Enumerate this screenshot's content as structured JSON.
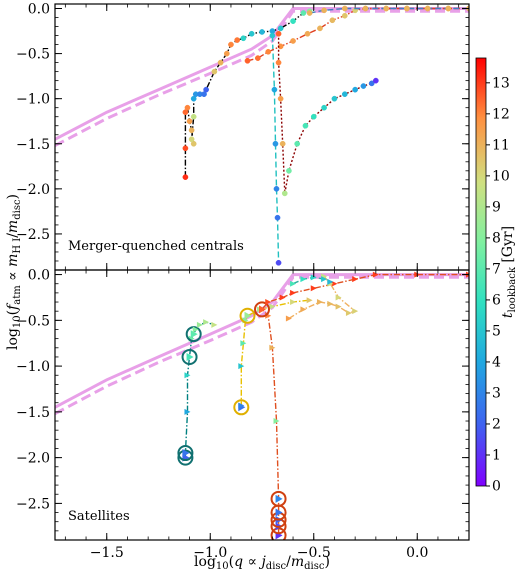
{
  "chart_data": [
    {
      "type": "line",
      "panel_label": "Merger-quenched centrals",
      "xlabel": "",
      "ylabel": "log10(f_atm ∝ m_HI/m_disc)",
      "xlim": [
        -1.75,
        0.25
      ],
      "ylim": [
        -2.9,
        0.05
      ],
      "x_ticks": [
        -1.5,
        -1.0,
        -0.5,
        0.0
      ],
      "x_tick_labels": [
        "",
        "",
        "",
        ""
      ],
      "y_ticks": [
        0.0,
        -0.5,
        -1.0,
        -1.5,
        -2.0,
        -2.5
      ],
      "y_tick_labels": [
        "0.0",
        "−0.5",
        "−1.0",
        "−1.5",
        "−2.0",
        "−2.5"
      ],
      "reference_curves": [
        {
          "style": "solid",
          "color": "#e8a0e8",
          "x": [
            -1.75,
            -1.5,
            -1.25,
            -1.0,
            -0.8,
            -0.7,
            -0.65,
            -0.6,
            0.25
          ],
          "y": [
            -1.45,
            -1.15,
            -0.9,
            -0.65,
            -0.45,
            -0.3,
            -0.15,
            0.0,
            0.0
          ]
        },
        {
          "style": "dashed",
          "color": "#e8a0e8",
          "x": [
            -1.75,
            -1.5,
            -1.25,
            -1.0,
            -0.8,
            -0.7,
            -0.65,
            -0.6,
            0.25
          ],
          "y": [
            -1.52,
            -1.22,
            -0.96,
            -0.72,
            -0.52,
            -0.36,
            -0.2,
            -0.03,
            -0.03
          ]
        }
      ],
      "series": [
        {
          "line_color": "#000000",
          "line_style": "dashdot",
          "points": [
            [
              -1.12,
              -1.87
            ],
            [
              -1.12,
              -1.55
            ],
            [
              -1.12,
              -1.15
            ],
            [
              -1.11,
              -1.1
            ],
            [
              -1.1,
              -1.25
            ],
            [
              -1.09,
              -1.35
            ],
            [
              -1.08,
              -1.5
            ],
            [
              -1.09,
              -1.45
            ],
            [
              -1.08,
              -1.2
            ],
            [
              -1.08,
              -1.0
            ],
            [
              -1.07,
              -0.95
            ],
            [
              -1.05,
              -0.95
            ],
            [
              -1.03,
              -0.95
            ],
            [
              -1.02,
              -0.9
            ],
            [
              -0.98,
              -0.7
            ],
            [
              -0.95,
              -0.6
            ],
            [
              -0.92,
              -0.5
            ],
            [
              -0.9,
              -0.4
            ],
            [
              -0.87,
              -0.35
            ],
            [
              -0.84,
              -0.33
            ],
            [
              -0.8,
              -0.28
            ],
            [
              -0.75,
              -0.26
            ],
            [
              -0.7,
              -0.25
            ],
            [
              -0.66,
              -0.22
            ],
            [
              -0.6,
              -0.14
            ],
            [
              -0.55,
              -0.05
            ],
            [
              -0.52,
              -0.03
            ]
          ],
          "t_lookback": [
            13.2,
            12.8,
            12.4,
            12.0,
            11.5,
            11.0,
            10.5,
            10.0,
            9.5,
            4.0,
            3.5,
            3.0,
            2.5,
            2.0,
            10.5,
            11.0,
            11.5,
            12.0,
            12.2,
            5.5,
            5.0,
            4.5,
            4.0,
            5.0,
            6.0,
            7.0,
            8.0
          ]
        },
        {
          "line_color": "#20c0c0",
          "line_style": "dashed",
          "points": [
            [
              -0.7,
              -0.3
            ],
            [
              -0.69,
              -0.9
            ],
            [
              -0.685,
              -1.5
            ],
            [
              -0.68,
              -2.0
            ],
            [
              -0.675,
              -2.32
            ],
            [
              -0.67,
              -2.82
            ]
          ],
          "t_lookback": [
            5.0,
            4.0,
            3.5,
            3.0,
            2.5,
            1.5
          ]
        },
        {
          "line_color": "#e04020",
          "line_style": "dashdot",
          "points": [
            [
              -0.82,
              -0.58
            ],
            [
              -0.77,
              -0.55
            ],
            [
              -0.72,
              -0.48
            ],
            [
              -0.66,
              -0.42
            ],
            [
              -0.6,
              -0.36
            ],
            [
              -0.53,
              -0.28
            ],
            [
              -0.47,
              -0.22
            ],
            [
              -0.41,
              -0.13
            ],
            [
              -0.35,
              -0.08
            ],
            [
              -0.3,
              -0.02
            ],
            [
              -0.25,
              0.0
            ],
            [
              -0.15,
              0.0
            ],
            [
              -0.05,
              0.0
            ],
            [
              0.05,
              0.0
            ],
            [
              0.15,
              0.0
            ],
            [
              0.25,
              0.0
            ]
          ],
          "t_lookback": [
            12.5,
            12.3,
            12.0,
            11.8,
            11.5,
            11.2,
            11.0,
            10.8,
            10.5,
            10.2,
            10.0,
            10.0,
            10.0,
            10.0,
            10.0,
            10.0
          ]
        },
        {
          "line_color": "#8b0000",
          "line_style": "dotted",
          "points": [
            [
              -0.67,
              -0.28
            ],
            [
              -0.67,
              -0.6
            ],
            [
              -0.66,
              -1.0
            ],
            [
              -0.65,
              -1.5
            ],
            [
              -0.64,
              -2.05
            ],
            [
              -0.62,
              -1.8
            ],
            [
              -0.58,
              -1.5
            ],
            [
              -0.54,
              -1.3
            ],
            [
              -0.5,
              -1.2
            ],
            [
              -0.45,
              -1.1
            ],
            [
              -0.4,
              -1.0
            ],
            [
              -0.35,
              -0.95
            ],
            [
              -0.3,
              -0.9
            ],
            [
              -0.26,
              -0.86
            ],
            [
              -0.22,
              -0.83
            ],
            [
              -0.2,
              -0.8
            ]
          ],
          "t_lookback": [
            12.5,
            12.0,
            11.5,
            11.0,
            9.0,
            7.5,
            7.0,
            6.5,
            6.0,
            5.5,
            5.0,
            4.5,
            4.0,
            3.5,
            2.5,
            1.0
          ]
        },
        {
          "line_color": "#4080c0",
          "line_style": "dashed",
          "points": [
            [
              -0.52,
              -0.05
            ],
            [
              -0.45,
              -0.02
            ],
            [
              -0.35,
              0.0
            ],
            [
              -0.25,
              0.0
            ],
            [
              -0.15,
              0.0
            ],
            [
              -0.05,
              0.0
            ],
            [
              0.05,
              0.0
            ],
            [
              0.15,
              0.0
            ],
            [
              0.25,
              0.0
            ]
          ],
          "t_lookback": [
            11.0,
            11.0,
            11.0,
            11.0,
            11.0,
            11.0,
            11.0,
            11.0,
            11.0
          ]
        }
      ]
    },
    {
      "type": "line",
      "panel_label": "Satellites",
      "xlabel": "log10(q ∝ j_disc/m_disc)",
      "ylabel": "",
      "xlim": [
        -1.75,
        0.25
      ],
      "ylim": [
        -2.9,
        0.05
      ],
      "x_ticks": [
        -1.5,
        -1.0,
        -0.5,
        0.0
      ],
      "x_tick_labels": [
        "−1.5",
        "−1.0",
        "−0.5",
        "0.0"
      ],
      "y_ticks": [
        0.0,
        -0.5,
        -1.0,
        -1.5,
        -2.0,
        -2.5
      ],
      "y_tick_labels": [
        "0.0",
        "−0.5",
        "−1.0",
        "−1.5",
        "−2.0",
        "−2.5"
      ],
      "reference_curves": [
        {
          "style": "solid",
          "color": "#e8a0e8",
          "x": [
            -1.75,
            -1.5,
            -1.25,
            -1.0,
            -0.8,
            -0.7,
            -0.65,
            -0.6,
            0.25
          ],
          "y": [
            -1.45,
            -1.15,
            -0.9,
            -0.65,
            -0.45,
            -0.3,
            -0.15,
            0.0,
            0.0
          ]
        },
        {
          "style": "dashed",
          "color": "#e8a0e8",
          "x": [
            -1.75,
            -1.5,
            -1.25,
            -1.0,
            -0.8,
            -0.7,
            -0.65,
            -0.6,
            0.25
          ],
          "y": [
            -1.52,
            -1.22,
            -0.96,
            -0.72,
            -0.52,
            -0.36,
            -0.2,
            -0.03,
            -0.03
          ]
        }
      ],
      "series": [
        {
          "line_color": "#008080",
          "line_style": "dashdot",
          "ring_color": "#107070",
          "points": [
            [
              -1.12,
              -2.0
            ],
            [
              -1.12,
              -1.95
            ],
            [
              -1.11,
              -1.5
            ],
            [
              -1.11,
              -1.1
            ],
            [
              -1.1,
              -0.9
            ],
            [
              -1.09,
              -0.7
            ],
            [
              -1.08,
              -0.65
            ],
            [
              -1.07,
              -0.6
            ],
            [
              -1.05,
              -0.55
            ],
            [
              -1.02,
              -0.52
            ],
            [
              -0.98,
              -0.55
            ]
          ],
          "t_lookback": [
            2.0,
            2.5,
            4.0,
            5.5,
            6.5,
            7.5,
            7.0,
            8.0,
            8.5,
            9.0,
            9.5
          ],
          "ringed": [
            0,
            1,
            4,
            6
          ]
        },
        {
          "line_color": "#e8c000",
          "line_style": "dashdot",
          "ring_color": "#e0b000",
          "points": [
            [
              -0.85,
              -1.45
            ],
            [
              -0.85,
              -1.43
            ],
            [
              -0.85,
              -1.0
            ],
            [
              -0.84,
              -0.75
            ],
            [
              -0.83,
              -0.5
            ],
            [
              -0.82,
              -0.45
            ],
            [
              -0.76,
              -0.38
            ],
            [
              -0.7,
              -0.35
            ],
            [
              -0.6,
              -0.3
            ],
            [
              -0.52,
              -0.28
            ]
          ],
          "t_lookback": [
            2.5,
            3.0,
            5.0,
            7.0,
            8.0,
            8.5,
            9.0,
            9.5,
            10.0,
            10.5
          ],
          "ringed": [
            0,
            5
          ]
        },
        {
          "line_color": "#e05020",
          "line_style": "dashdot",
          "ring_color": "#d04010",
          "points": [
            [
              -0.67,
              -2.85
            ],
            [
              -0.67,
              -2.75
            ],
            [
              -0.67,
              -2.68
            ],
            [
              -0.67,
              -2.6
            ],
            [
              -0.67,
              -2.45
            ],
            [
              -0.68,
              -1.6
            ],
            [
              -0.7,
              -0.8
            ],
            [
              -0.72,
              -0.45
            ],
            [
              -0.75,
              -0.38
            ],
            [
              -0.72,
              -0.3
            ],
            [
              -0.65,
              -0.25
            ],
            [
              -0.6,
              -0.2
            ],
            [
              -0.5,
              -0.15
            ],
            [
              -0.4,
              -0.1
            ],
            [
              -0.3,
              -0.05
            ],
            [
              -0.2,
              0.0
            ],
            [
              0.0,
              0.0
            ],
            [
              0.25,
              0.0
            ]
          ],
          "t_lookback": [
            1.0,
            1.5,
            2.0,
            2.5,
            3.0,
            8.0,
            11.0,
            12.0,
            12.5,
            12.8,
            13.0,
            13.0,
            13.0,
            13.0,
            13.0,
            13.0,
            13.0,
            13.0
          ],
          "ringed": [
            0,
            1,
            2,
            3,
            4,
            8
          ]
        },
        {
          "line_color": "#f0b060",
          "line_style": "dashdot",
          "ring_color": "#e0a050",
          "points": [
            [
              -0.62,
              -0.48
            ],
            [
              -0.55,
              -0.38
            ],
            [
              -0.47,
              -0.3
            ],
            [
              -0.42,
              -0.32
            ],
            [
              -0.38,
              -0.35
            ],
            [
              -0.33,
              -0.42
            ],
            [
              -0.3,
              -0.4
            ],
            [
              -0.38,
              -0.25
            ],
            [
              -0.42,
              -0.1
            ],
            [
              -0.45,
              -0.02
            ]
          ],
          "t_lookback": [
            11.5,
            11.2,
            11.0,
            10.8,
            10.6,
            10.4,
            10.2,
            10.0,
            9.8,
            9.5
          ],
          "ringed": []
        },
        {
          "line_color": "#30b0a0",
          "line_style": "dashed",
          "ring_color": "#30b0a0",
          "points": [
            [
              -0.6,
              -0.1
            ],
            [
              -0.55,
              -0.05
            ],
            [
              -0.5,
              -0.03
            ],
            [
              -0.45,
              -0.05
            ],
            [
              -0.42,
              -0.08
            ]
          ],
          "t_lookback": [
            6.5,
            6.0,
            5.5,
            5.0,
            4.5
          ],
          "ringed": []
        }
      ]
    }
  ],
  "colorbar": {
    "label": "t_lookback [Gyr]",
    "vmin": 0,
    "vmax": 13.8,
    "ticks": [
      0,
      1,
      2,
      3,
      4,
      5,
      6,
      7,
      8,
      9,
      10,
      11,
      12,
      13
    ],
    "tick_labels": [
      "0",
      "1",
      "2",
      "3",
      "4",
      "5",
      "6",
      "7",
      "8",
      "9",
      "10",
      "11",
      "12",
      "13"
    ],
    "colormap": "rainbow"
  }
}
